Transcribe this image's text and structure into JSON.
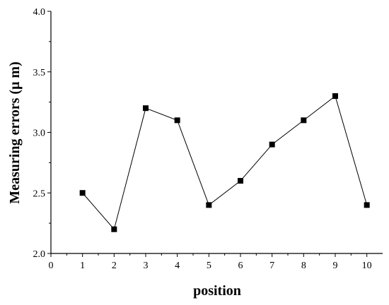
{
  "chart_data": {
    "type": "line",
    "title": "",
    "xlabel": "position",
    "ylabel": "Measuring errors (μ m)",
    "xlim": [
      0,
      10.5
    ],
    "ylim": [
      2.0,
      4.0
    ],
    "x_ticks": [
      0,
      1,
      2,
      3,
      4,
      5,
      6,
      7,
      8,
      9,
      10
    ],
    "x_tick_labels": [
      "0",
      "1",
      "2",
      "3",
      "4",
      "5",
      "6",
      "7",
      "8",
      "9",
      "10"
    ],
    "y_ticks": [
      2.0,
      2.5,
      3.0,
      3.5,
      4.0
    ],
    "y_tick_labels": [
      "2.0",
      "2.5",
      "3.0",
      "3.5",
      "4.0"
    ],
    "grid": false,
    "marker": "square",
    "series": [
      {
        "x": [
          1,
          2,
          3,
          4,
          5,
          6,
          7,
          8,
          9,
          10
        ],
        "y": [
          2.5,
          2.2,
          3.2,
          3.1,
          2.4,
          2.6,
          2.9,
          3.1,
          3.3,
          2.4
        ]
      }
    ]
  }
}
